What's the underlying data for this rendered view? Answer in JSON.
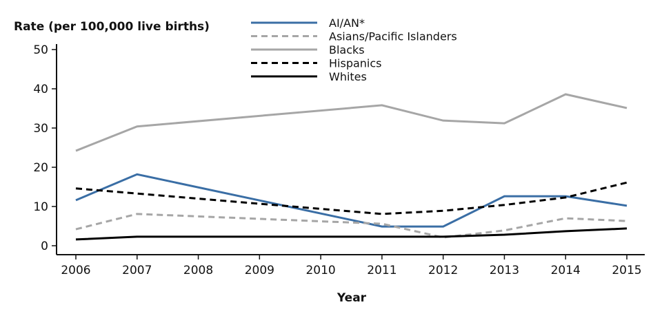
{
  "chart_data": {
    "type": "line",
    "ylabel": "Rate (per 100,000 live births)",
    "xlabel": "Year",
    "xlim": [
      2006,
      2015
    ],
    "ylim": [
      0,
      50
    ],
    "x_ticks": [
      2006,
      2007,
      2008,
      2009,
      2010,
      2011,
      2012,
      2013,
      2014,
      2015
    ],
    "y_ticks": [
      0,
      10,
      20,
      30,
      40,
      50
    ],
    "grid": false,
    "legend_placement": "top-center",
    "series": [
      {
        "name": "AI/AN*",
        "color": "#3a6ea5",
        "dash": "solid",
        "x": [
          2006,
          2007,
          2011,
          2012,
          2013,
          2014,
          2015
        ],
        "values": [
          11.6,
          18.2,
          4.9,
          4.9,
          12.6,
          12.6,
          10.2
        ]
      },
      {
        "name": "Asians/Pacific Islanders",
        "color": "#a6a6a6",
        "dash": "dashed",
        "x": [
          2006,
          2007,
          2011,
          2012,
          2013,
          2014,
          2015
        ],
        "values": [
          4.2,
          8.1,
          5.6,
          2.1,
          3.9,
          7.0,
          6.3
        ]
      },
      {
        "name": "Blacks",
        "color": "#a6a6a6",
        "dash": "solid",
        "x": [
          2006,
          2007,
          2011,
          2012,
          2013,
          2014,
          2015
        ],
        "values": [
          24.2,
          30.4,
          35.8,
          31.9,
          31.2,
          38.6,
          35.1
        ]
      },
      {
        "name": "Hispanics",
        "color": "#000000",
        "dash": "dashed",
        "x": [
          2006,
          2007,
          2011,
          2012,
          2013,
          2014,
          2015
        ],
        "values": [
          14.6,
          13.3,
          8.1,
          8.9,
          10.4,
          12.3,
          16.1
        ]
      },
      {
        "name": "Whites",
        "color": "#000000",
        "dash": "solid",
        "x": [
          2006,
          2007,
          2011,
          2012,
          2013,
          2014,
          2015
        ],
        "values": [
          1.6,
          2.3,
          2.3,
          2.3,
          2.8,
          3.7,
          4.4
        ]
      }
    ]
  }
}
